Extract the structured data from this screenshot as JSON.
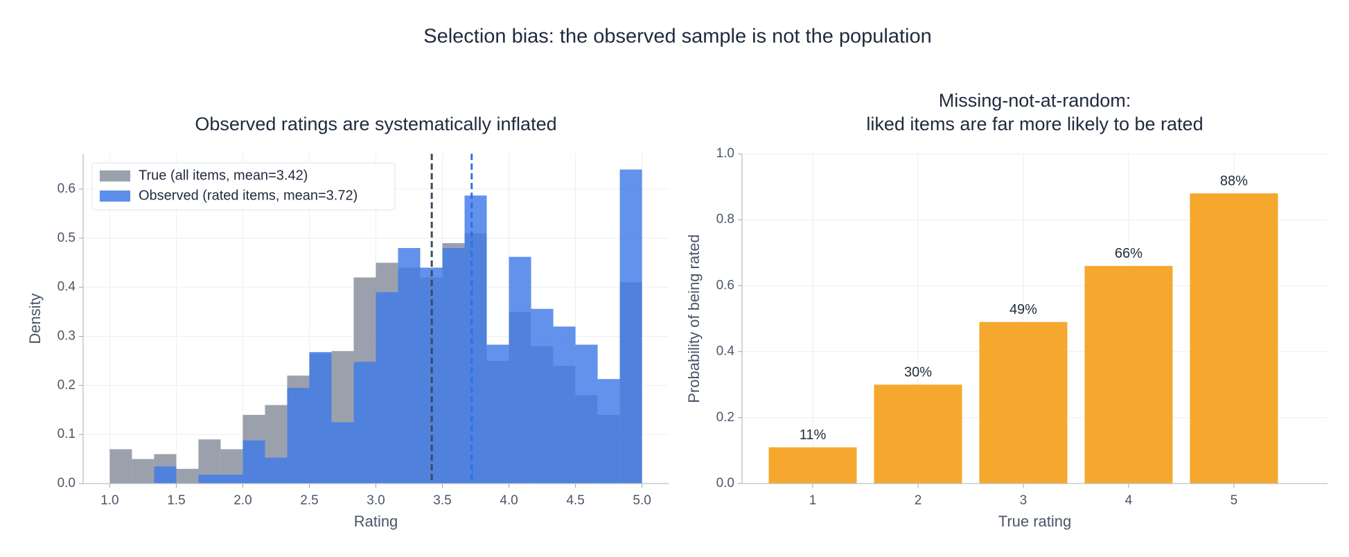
{
  "title": "Selection bias: the observed sample is not the population",
  "chart_data": [
    {
      "type": "histogram",
      "title": "Observed ratings are systematically inflated",
      "x_label": "Rating",
      "y_label": "Density",
      "bins": [
        1.0,
        1.1667,
        1.3333,
        1.5,
        1.6667,
        1.8333,
        2.0,
        2.1667,
        2.3333,
        2.5,
        2.6667,
        2.8333,
        3.0,
        3.1667,
        3.3333,
        3.5,
        3.6667,
        3.8333,
        4.0,
        4.1667,
        4.3333,
        4.5,
        4.6667,
        4.8333,
        5.0
      ],
      "series": [
        {
          "name": "True (all items, mean=3.42)",
          "color": "#8a919e",
          "values": [
            0.07,
            0.05,
            0.06,
            0.03,
            0.09,
            0.07,
            0.14,
            0.16,
            0.22,
            0.265,
            0.27,
            0.42,
            0.45,
            0.44,
            0.42,
            0.49,
            0.51,
            0.25,
            0.35,
            0.28,
            0.24,
            0.18,
            0.14,
            0.41
          ]
        },
        {
          "name": "Observed (rated items, mean=3.72)",
          "color": "#3f7ae8",
          "values": [
            0,
            0,
            0.035,
            0,
            0.018,
            0.018,
            0.088,
            0.053,
            0.195,
            0.268,
            0.125,
            0.248,
            0.39,
            0.48,
            0.44,
            0.48,
            0.587,
            0.283,
            0.462,
            0.356,
            0.32,
            0.283,
            0.213,
            0.64
          ]
        }
      ],
      "reference_lines": [
        {
          "value": 3.42,
          "color": "#3d4a5c"
        },
        {
          "value": 3.72,
          "color": "#2f6fe8"
        }
      ],
      "xlim": [
        0.8,
        5.2
      ],
      "xticks": [
        {
          "value": 1,
          "label": "1.0"
        },
        1.5,
        {
          "value": 2,
          "label": "2.0"
        },
        2.5,
        {
          "value": 3,
          "label": "3.0"
        },
        3.5,
        {
          "value": 4,
          "label": "4.0"
        },
        4.5,
        {
          "value": 5,
          "label": "5.0"
        }
      ],
      "ylim": [
        0,
        0.672
      ],
      "yticks": [
        {
          "value": 0,
          "label": "0.0"
        },
        0.1,
        0.2,
        0.3,
        0.4,
        0.5,
        0.6
      ],
      "grid": true,
      "legend": "upper left"
    },
    {
      "type": "bar",
      "title": "Missing-not-at-random:\nliked items are far more likely to be rated",
      "x_label": "True rating",
      "y_label": "Probability of being rated",
      "categories": [
        "1",
        "2",
        "3",
        "4",
        "5"
      ],
      "values": [
        0.11,
        0.3,
        0.49,
        0.66,
        0.88
      ],
      "value_labels": [
        "11%",
        "30%",
        "49%",
        "66%",
        "88%"
      ],
      "color": "#f5a82d",
      "ylim": [
        0,
        1
      ],
      "yticks": [
        {
          "value": 0,
          "label": "0.0"
        },
        0.2,
        0.4,
        0.6,
        0.8,
        {
          "value": 1,
          "label": "1.0"
        }
      ],
      "grid": true
    }
  ]
}
